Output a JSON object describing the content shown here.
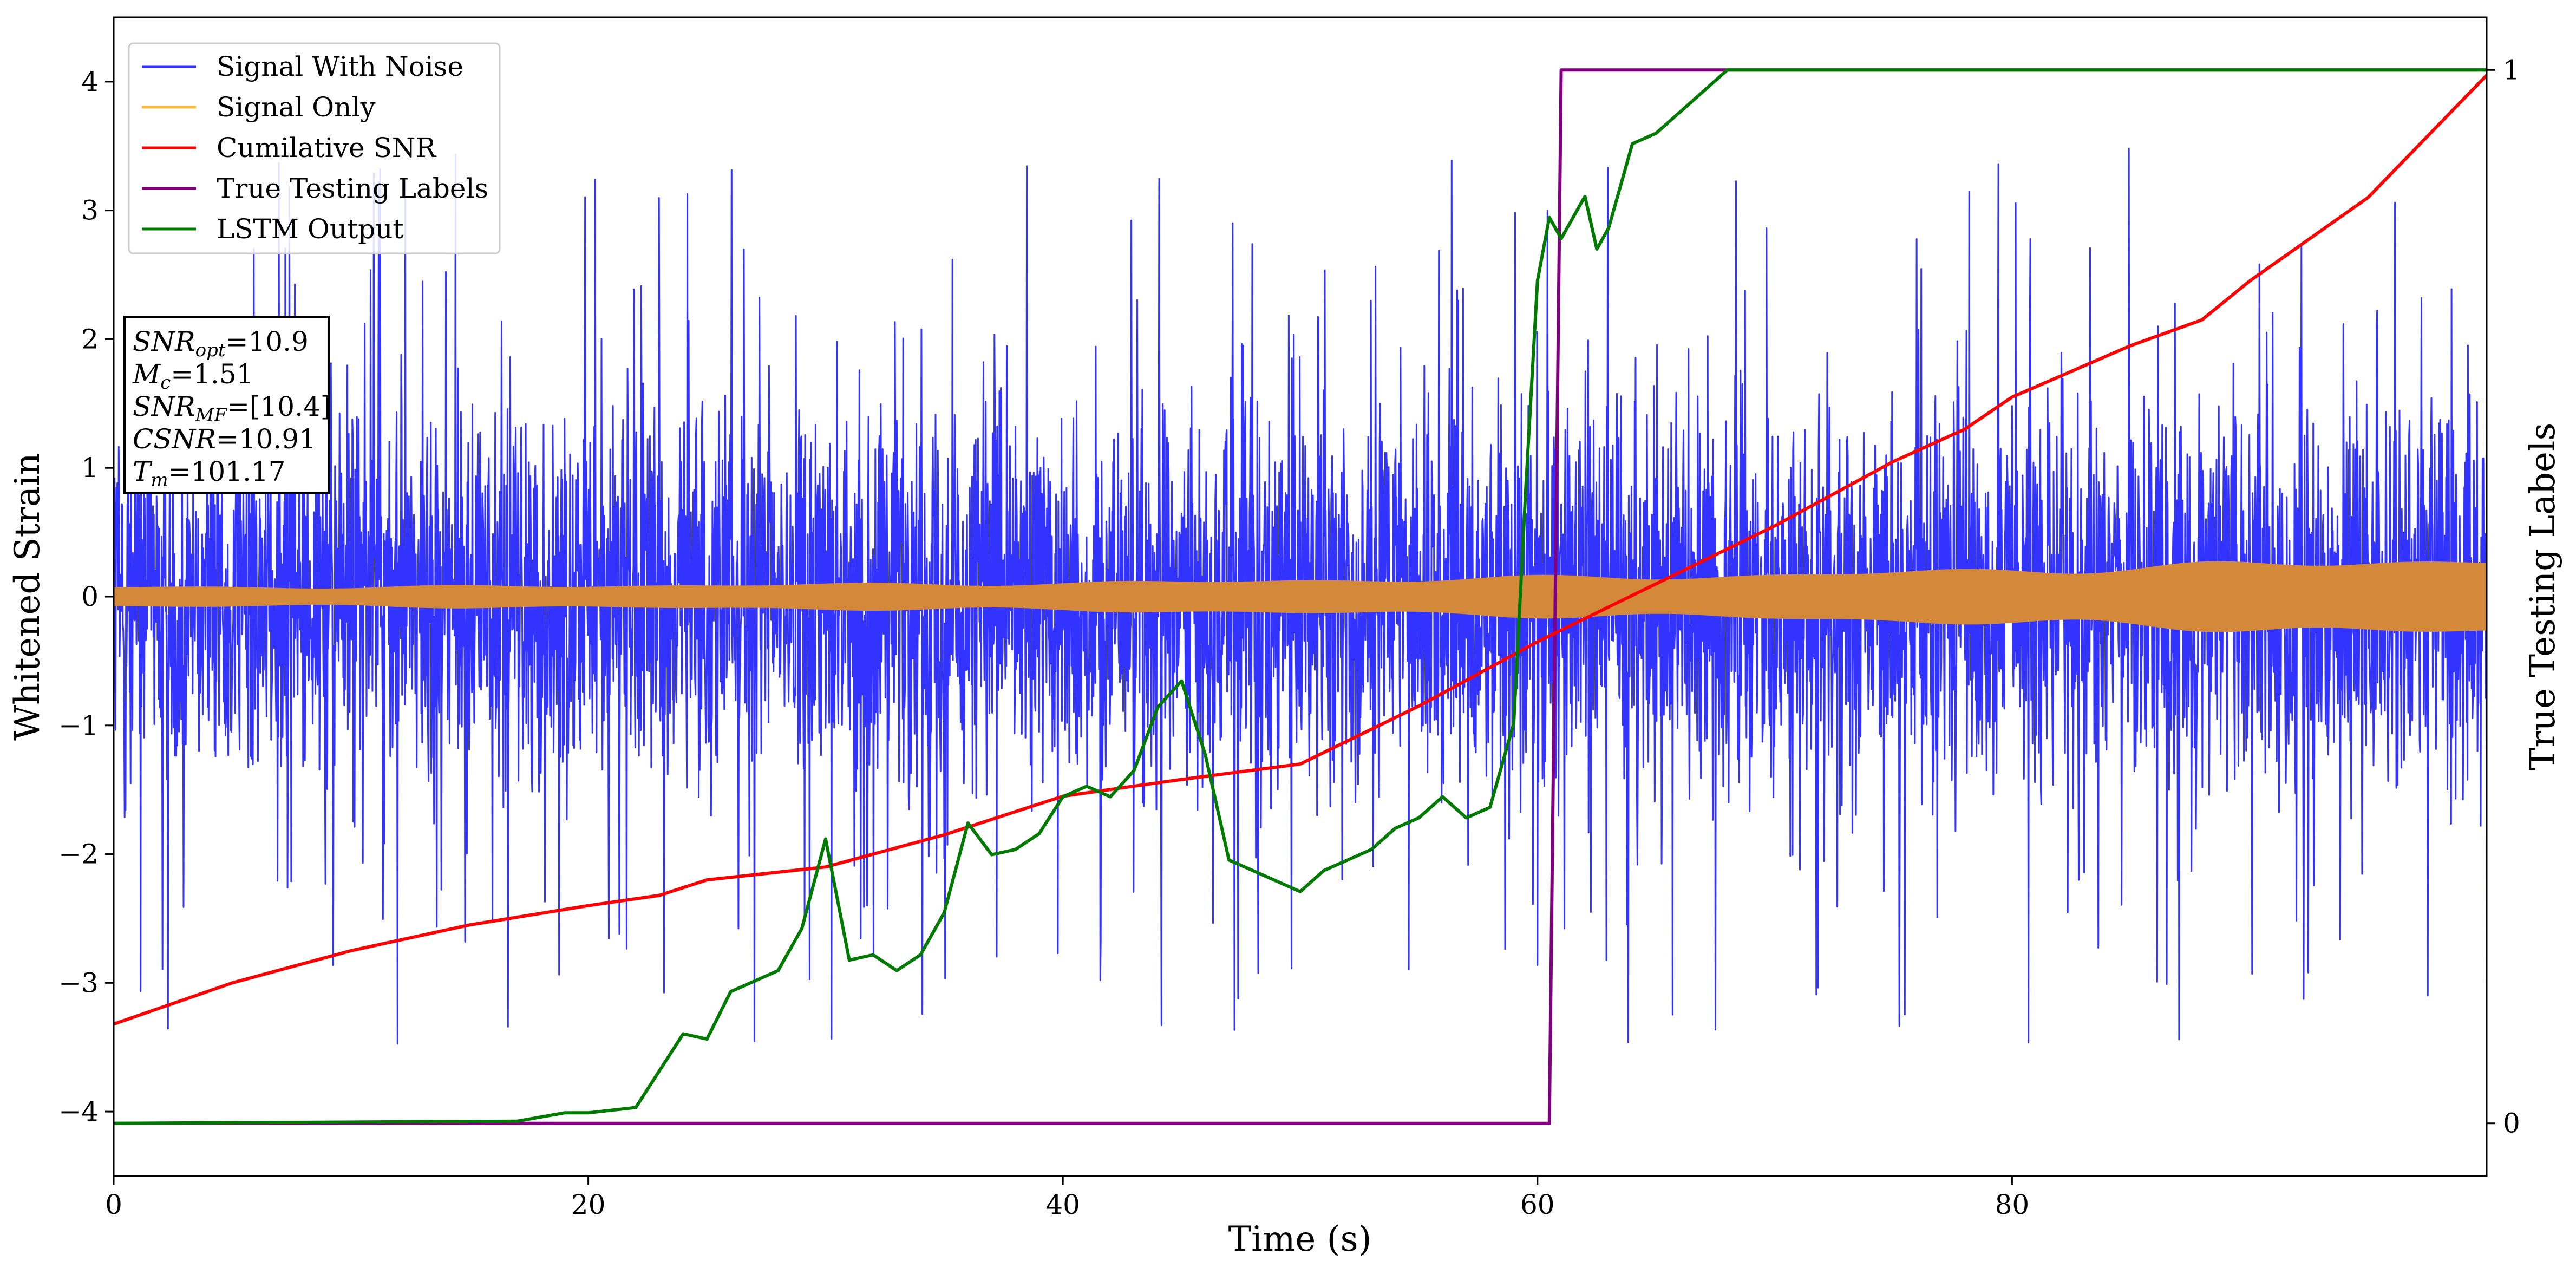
{
  "colors": {
    "signal_with_noise": "#3333ff",
    "signal_only": "#d4893a",
    "cumulative_snr": "#ff0000",
    "true_testing_labels": "#800080",
    "lstm_output": "#007a00",
    "signal_only_legend": "#ffb733"
  },
  "info_box": {
    "lines": [
      {
        "base": "SNR",
        "sub": "opt",
        "value": "=10.9"
      },
      {
        "base": "M",
        "sub": "c",
        "value": "=1.51"
      },
      {
        "base": "SNR",
        "sub": "MF",
        "value": "=[10.4]"
      },
      {
        "base": "CSNR",
        "sub": "",
        "value": "=10.91"
      },
      {
        "base": "T",
        "sub": "m",
        "value": "=101.17"
      }
    ]
  },
  "chart_data": {
    "type": "line",
    "title": "",
    "xlabel": "Time (s)",
    "ylabel": "Whitened Strain",
    "y2label": "True Testing Labels",
    "xlim": [
      0,
      100
    ],
    "ylim": [
      -4.5,
      4.5
    ],
    "y2lim": [
      -0.05,
      1.05
    ],
    "xticks": [
      0,
      20,
      40,
      60,
      80
    ],
    "yticks": [
      -4,
      -3,
      -2,
      -1,
      0,
      1,
      2,
      3,
      4
    ],
    "y2ticks": [
      0,
      1
    ],
    "grid": false,
    "legend_position": "top-left",
    "legend": [
      "Signal With Noise",
      "Signal Only",
      "Cumilative SNR",
      "True Testing Labels",
      "LSTM Output"
    ],
    "series": [
      {
        "name": "Signal With Noise",
        "axis": "left",
        "kind": "noise-band",
        "range": [
          -4.1,
          3.55
        ],
        "typical_band": [
          -1.0,
          1.0
        ]
      },
      {
        "name": "Signal Only",
        "axis": "left",
        "kind": "envelope",
        "x": [
          0,
          10,
          20,
          30,
          40,
          50,
          60,
          70,
          80,
          90,
          100
        ],
        "amplitude": [
          0.07,
          0.07,
          0.08,
          0.09,
          0.1,
          0.12,
          0.14,
          0.16,
          0.2,
          0.24,
          0.28
        ]
      },
      {
        "name": "Cumilative SNR",
        "axis": "left",
        "x": [
          0,
          5,
          10,
          15,
          20,
          23,
          25,
          30,
          35,
          40,
          45,
          50,
          55,
          60,
          65,
          70,
          75,
          78,
          80,
          85,
          88,
          90,
          95,
          100
        ],
        "y": [
          -3.32,
          -3.0,
          -2.75,
          -2.55,
          -2.4,
          -2.32,
          -2.2,
          -2.1,
          -1.85,
          -1.55,
          -1.42,
          -1.3,
          -0.85,
          -0.35,
          0.1,
          0.55,
          1.05,
          1.3,
          1.55,
          1.95,
          2.15,
          2.45,
          3.1,
          4.05
        ]
      },
      {
        "name": "True Testing Labels",
        "axis": "right",
        "x": [
          0,
          60.5,
          61,
          100
        ],
        "y": [
          0,
          0,
          1,
          1
        ]
      },
      {
        "name": "LSTM Output",
        "axis": "right",
        "x": [
          0,
          17,
          19,
          20,
          22,
          23,
          24,
          25,
          26,
          27,
          28,
          29,
          30,
          31,
          32,
          33,
          34,
          35,
          36,
          37,
          38,
          39,
          40,
          41,
          42,
          43,
          44,
          45,
          46,
          47,
          48,
          49,
          50,
          51,
          52,
          53,
          54,
          55,
          56,
          57,
          58,
          59,
          59.5,
          60,
          60.5,
          61,
          62,
          62.5,
          63,
          64,
          65,
          66,
          67,
          68,
          69,
          70,
          72,
          75,
          80,
          90,
          100
        ],
        "y": [
          0,
          0.002,
          0.01,
          0.01,
          0.015,
          0.05,
          0.085,
          0.08,
          0.125,
          0.135,
          0.145,
          0.185,
          0.27,
          0.155,
          0.16,
          0.145,
          0.16,
          0.2,
          0.285,
          0.255,
          0.26,
          0.275,
          0.31,
          0.32,
          0.31,
          0.335,
          0.395,
          0.42,
          0.35,
          0.25,
          0.24,
          0.23,
          0.22,
          0.24,
          0.25,
          0.26,
          0.28,
          0.29,
          0.31,
          0.29,
          0.3,
          0.38,
          0.6,
          0.8,
          0.86,
          0.84,
          0.88,
          0.83,
          0.85,
          0.93,
          0.94,
          0.96,
          0.98,
          1.0,
          1.0,
          1.0,
          1.0,
          1.0,
          1.0,
          1.0,
          1.0
        ]
      }
    ]
  }
}
